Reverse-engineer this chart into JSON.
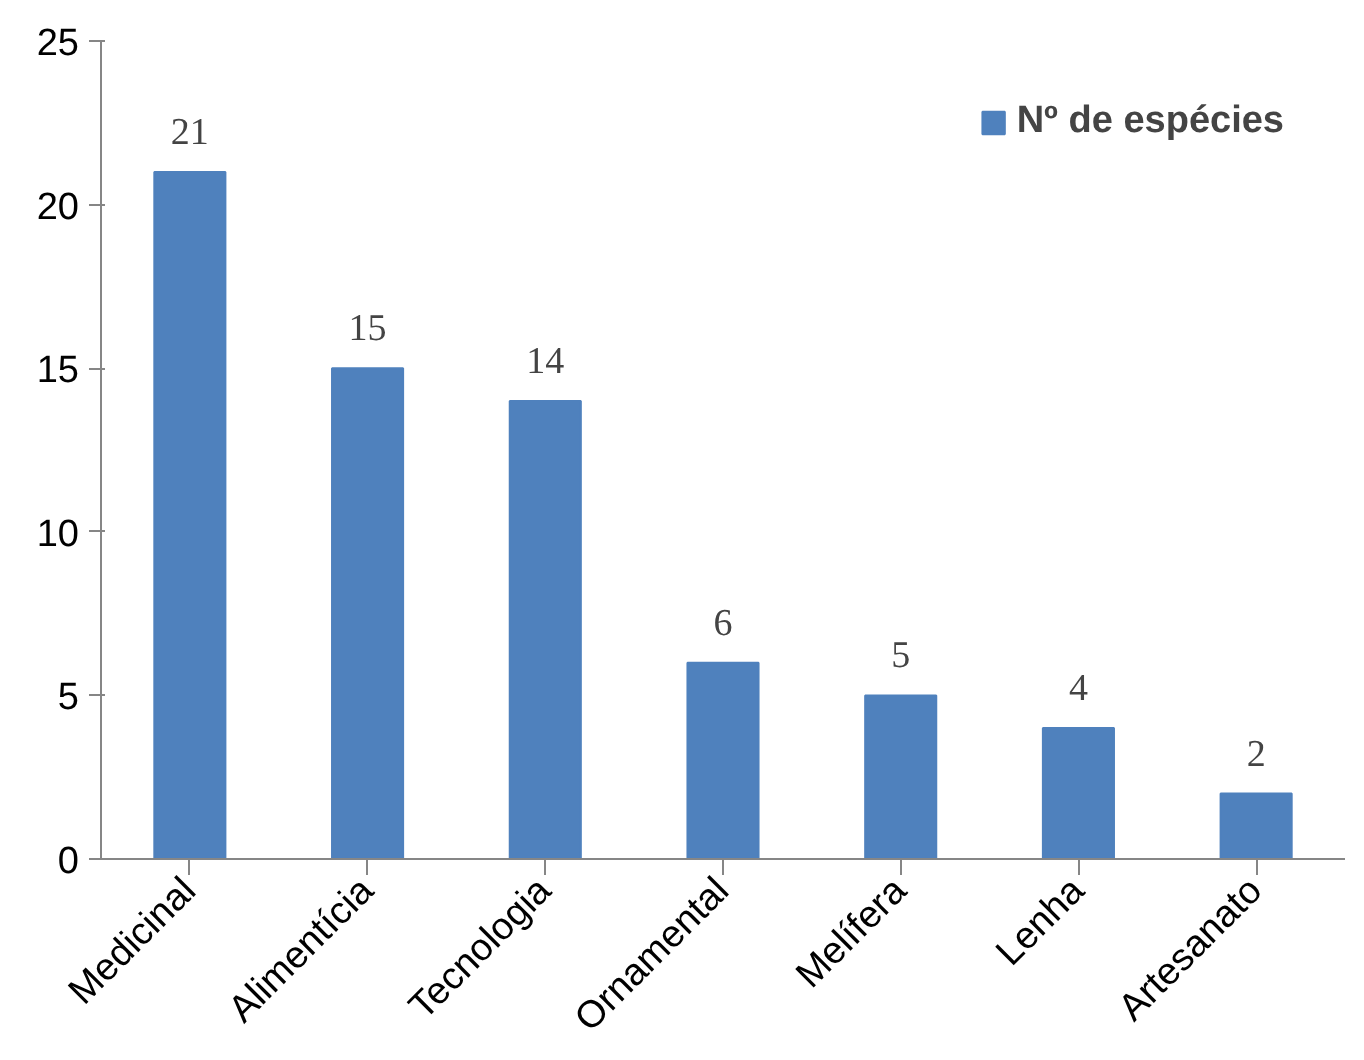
{
  "chart_data": {
    "type": "bar",
    "categories": [
      "Medicinal",
      "Alimentícia",
      "Tecnologia",
      "Ornamental",
      "Melífera",
      "Lenha",
      "Artesanato"
    ],
    "series": [
      {
        "name": "Nº de espécies",
        "color": "#4f81bd",
        "values": [
          21,
          15,
          14,
          6,
          5,
          4,
          2
        ]
      }
    ],
    "ylim": [
      0,
      25
    ],
    "yticks": [
      0,
      5,
      10,
      15,
      20,
      25
    ],
    "data_labels": true,
    "grid": false,
    "legend": "top right"
  }
}
